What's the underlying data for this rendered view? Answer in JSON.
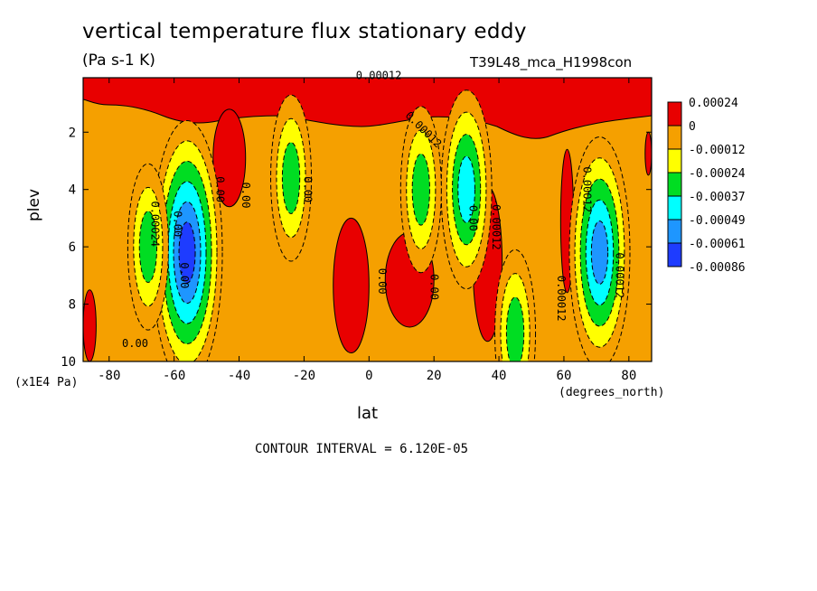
{
  "header": {
    "title": "vertical temperature flux stationary eddy",
    "units": "(Pa s-1 K)",
    "run": "T39L48_mca_H1998con"
  },
  "footer": {
    "contour_interval": "CONTOUR INTERVAL = 6.120E-05"
  },
  "chart_data": {
    "type": "heatmap",
    "title": "vertical temperature flux stationary eddy",
    "subtitle": "(Pa s-1 K)",
    "xlabel": "lat",
    "xunit": "(degrees_north)",
    "ylabel": "plev",
    "yunit": "(x1E4 Pa)",
    "xlim": [
      -88,
      87
    ],
    "ylim": [
      10,
      0.1
    ],
    "x_ticks": [
      -80,
      -60,
      -40,
      -20,
      0,
      20,
      40,
      60,
      80
    ],
    "y_ticks": [
      2,
      4,
      6,
      8,
      10
    ],
    "colorbar": {
      "labels": [
        "0.00024",
        "0",
        "-0.00012",
        "-0.00024",
        "-0.00037",
        "-0.00049",
        "-0.00061",
        "-0.00086"
      ],
      "colors": [
        "#e80000",
        "#f5a000",
        "#ffff00",
        "#00dd22",
        "#00ffff",
        "#1e96ff",
        "#1e3cff"
      ]
    },
    "background_color": "#f5a000",
    "positive_bands": [
      {
        "lon": [
          -88,
          -84
        ],
        "p": [
          7.5,
          10
        ]
      },
      {
        "lon": [
          -48,
          -38
        ],
        "p": [
          1.2,
          4.6
        ]
      },
      {
        "lon": [
          -11,
          0
        ],
        "p": [
          5,
          9.7
        ]
      },
      {
        "lon": [
          5,
          20
        ],
        "p": [
          5.5,
          8.8
        ]
      },
      {
        "lon": [
          32,
          41
        ],
        "p": [
          3.9,
          9.3
        ]
      },
      {
        "lon": [
          59,
          63
        ],
        "p": [
          2.6,
          7.6
        ]
      },
      {
        "lon": [
          85,
          87
        ],
        "p": [
          2,
          3.5
        ]
      }
    ],
    "negative_cells": [
      {
        "lon": -56,
        "p": 6.2,
        "min": "-0.00086"
      },
      {
        "lon": -68,
        "p": 6.0,
        "min": "-0.00037"
      },
      {
        "lon": -24,
        "p": 3.6,
        "min": "-0.00037"
      },
      {
        "lon": 30,
        "p": 4.0,
        "min": "-0.00049"
      },
      {
        "lon": 16,
        "p": 4.0,
        "min": "-0.00037"
      },
      {
        "lon": 45,
        "p": 9.0,
        "min": "-0.00037"
      },
      {
        "lon": 71,
        "p": 6.2,
        "min": "-0.00061"
      }
    ],
    "contour_labels": [
      "0.00",
      "0.00",
      "0.00",
      "0.00",
      "0.00",
      "0.00",
      "0.00",
      "0.00",
      "0.00",
      "-0.00012",
      "0.00012",
      "0.00012",
      "0.00012",
      "0.00012",
      "0.00012",
      "0.00024"
    ]
  }
}
